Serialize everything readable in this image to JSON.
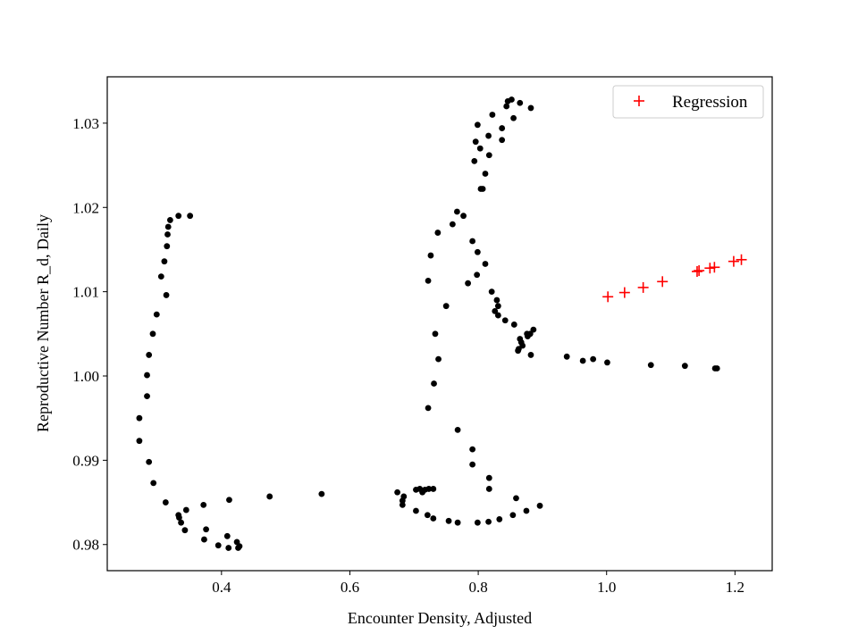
{
  "chart_data": {
    "type": "scatter",
    "xlabel": "Encounter Density, Adjusted",
    "ylabel": "Reproductive Number R_d, Daily",
    "xlim": [
      0.222,
      1.258
    ],
    "ylim": [
      0.9769,
      1.0355
    ],
    "xticks": [
      0.4,
      0.6,
      0.8,
      1.0,
      1.2
    ],
    "xtick_labels": [
      "0.4",
      "0.6",
      "0.8",
      "1.0",
      "1.2"
    ],
    "yticks": [
      0.98,
      0.99,
      1.0,
      1.01,
      1.02,
      1.03
    ],
    "ytick_labels": [
      "0.98",
      "0.99",
      "1.00",
      "1.01",
      "1.02",
      "1.03"
    ],
    "grid": false,
    "legend": {
      "position": "top-right",
      "entries": [
        "Regression"
      ]
    },
    "series": [
      {
        "marker": "dot",
        "color": "#000000",
        "points": [
          [
            0.351,
            1.019
          ],
          [
            0.333,
            1.019
          ],
          [
            0.32,
            1.0185
          ],
          [
            0.317,
            1.0177
          ],
          [
            0.316,
            1.0168
          ],
          [
            0.315,
            1.0154
          ],
          [
            0.311,
            1.0136
          ],
          [
            0.306,
            1.0118
          ],
          [
            0.314,
            1.0096
          ],
          [
            0.299,
            1.0073
          ],
          [
            0.293,
            1.005
          ],
          [
            0.287,
            1.0025
          ],
          [
            0.284,
            1.0001
          ],
          [
            0.284,
            0.9976
          ],
          [
            0.272,
            0.995
          ],
          [
            0.272,
            0.9923
          ],
          [
            0.287,
            0.9898
          ],
          [
            0.294,
            0.9873
          ],
          [
            0.313,
            0.985
          ],
          [
            0.333,
            0.9835
          ],
          [
            0.334,
            0.9832
          ],
          [
            0.337,
            0.9826
          ],
          [
            0.343,
            0.9817
          ],
          [
            0.345,
            0.9841
          ],
          [
            0.372,
            0.9847
          ],
          [
            0.373,
            0.9806
          ],
          [
            0.376,
            0.9818
          ],
          [
            0.395,
            0.9799
          ],
          [
            0.409,
            0.981
          ],
          [
            0.411,
            0.9796
          ],
          [
            0.412,
            0.9853
          ],
          [
            0.424,
            0.9803
          ],
          [
            0.426,
            0.9796
          ],
          [
            0.428,
            0.9798
          ],
          [
            0.475,
            0.9857
          ],
          [
            0.556,
            0.986
          ],
          [
            0.674,
            0.9862
          ],
          [
            0.682,
            0.9852
          ],
          [
            0.684,
            0.9857
          ],
          [
            0.682,
            0.9847
          ],
          [
            0.703,
            0.9865
          ],
          [
            0.709,
            0.9866
          ],
          [
            0.713,
            0.9862
          ],
          [
            0.717,
            0.9865
          ],
          [
            0.723,
            0.9866
          ],
          [
            0.73,
            0.9866
          ],
          [
            0.703,
            0.984
          ],
          [
            0.721,
            0.9835
          ],
          [
            0.73,
            0.9831
          ],
          [
            0.754,
            0.9828
          ],
          [
            0.768,
            0.9826
          ],
          [
            0.799,
            0.9826
          ],
          [
            0.816,
            0.9827
          ],
          [
            0.833,
            0.983
          ],
          [
            0.854,
            0.9835
          ],
          [
            0.875,
            0.984
          ],
          [
            0.896,
            0.9846
          ],
          [
            0.859,
            0.9855
          ],
          [
            0.817,
            0.9866
          ],
          [
            0.817,
            0.9879
          ],
          [
            0.791,
            0.9895
          ],
          [
            0.791,
            0.9913
          ],
          [
            0.768,
            0.9936
          ],
          [
            0.722,
            0.9962
          ],
          [
            0.731,
            0.9991
          ],
          [
            0.738,
            1.002
          ],
          [
            0.733,
            1.005
          ],
          [
            0.75,
            1.0083
          ],
          [
            0.722,
            1.0113
          ],
          [
            0.726,
            1.0143
          ],
          [
            0.737,
            1.017
          ],
          [
            0.76,
            1.018
          ],
          [
            0.767,
            1.0195
          ],
          [
            0.777,
            1.019
          ],
          [
            0.791,
            1.016
          ],
          [
            0.799,
            1.0147
          ],
          [
            0.811,
            1.0133
          ],
          [
            0.798,
            1.012
          ],
          [
            0.784,
            1.011
          ],
          [
            0.821,
            1.01
          ],
          [
            0.829,
            1.009
          ],
          [
            0.831,
            1.0083
          ],
          [
            0.826,
            1.0077
          ],
          [
            0.831,
            1.0072
          ],
          [
            0.842,
            1.0066
          ],
          [
            0.856,
            1.0061
          ],
          [
            0.865,
            1.0044
          ],
          [
            0.867,
            1.004
          ],
          [
            0.869,
            1.0036
          ],
          [
            0.863,
            1.0032
          ],
          [
            0.877,
            1.0047
          ],
          [
            0.886,
            1.0055
          ],
          [
            0.881,
            1.005
          ],
          [
            0.862,
            1.003
          ],
          [
            0.882,
            1.0025
          ],
          [
            0.876,
            1.005
          ],
          [
            0.938,
            1.0023
          ],
          [
            0.963,
            1.0018
          ],
          [
            0.979,
            1.002
          ],
          [
            1.001,
            1.0016
          ],
          [
            1.069,
            1.0013
          ],
          [
            1.122,
            1.0012
          ],
          [
            1.169,
            1.0009
          ],
          [
            1.172,
            1.0009
          ],
          [
            0.807,
            1.0222
          ],
          [
            0.804,
            1.0222
          ],
          [
            0.811,
            1.024
          ],
          [
            0.794,
            1.0255
          ],
          [
            0.817,
            1.0262
          ],
          [
            0.803,
            1.027
          ],
          [
            0.796,
            1.0278
          ],
          [
            0.837,
            1.028
          ],
          [
            0.816,
            1.0285
          ],
          [
            0.837,
            1.0294
          ],
          [
            0.799,
            1.0298
          ],
          [
            0.822,
            1.031
          ],
          [
            0.855,
            1.0306
          ],
          [
            0.844,
            1.032
          ],
          [
            0.846,
            1.0326
          ],
          [
            0.852,
            1.0328
          ],
          [
            0.865,
            1.0324
          ],
          [
            0.882,
            1.0318
          ]
        ]
      },
      {
        "name": "Regression",
        "marker": "plus",
        "color": "#ff0000",
        "points": [
          [
            1.002,
            1.0094
          ],
          [
            1.028,
            1.0099
          ],
          [
            1.057,
            1.0105
          ],
          [
            1.087,
            1.0112
          ],
          [
            1.141,
            1.0124
          ],
          [
            1.144,
            1.0125
          ],
          [
            1.161,
            1.0128
          ],
          [
            1.168,
            1.0129
          ],
          [
            1.198,
            1.0136
          ],
          [
            1.21,
            1.0138
          ]
        ]
      }
    ]
  }
}
